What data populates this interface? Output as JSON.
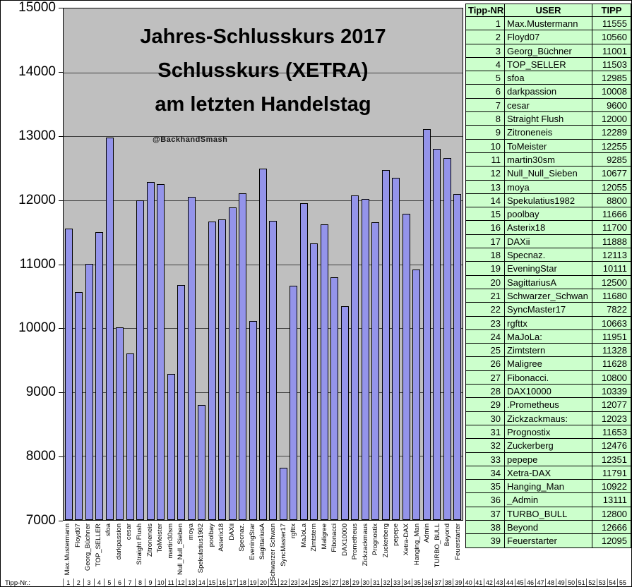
{
  "chart": {
    "title_lines": [
      "Jahres-Schlusskurs 2017",
      "Schlusskurs (XETRA)",
      "am letzten Handelstag"
    ],
    "watermark": "@BackhandSmash",
    "colors": {
      "bar_fill": "#9494ea",
      "bar_border": "#000000",
      "plot_background": "#bfbfbf",
      "table_background": "#ccffcc",
      "gridline": "#3f3f3f"
    },
    "y_axis": {
      "min": 7000,
      "max": 15000,
      "step": 1000,
      "ticks": [
        "15000",
        "14000",
        "13000",
        "12000",
        "11000",
        "10000",
        "9000",
        "8000",
        "7000"
      ]
    }
  },
  "number_row": {
    "label": "Tipp-Nr.:",
    "from": 1,
    "to": 55
  },
  "table": {
    "headers": [
      "Tipp-NR.:",
      "USER",
      "TIPP"
    ]
  },
  "chart_data": {
    "type": "bar",
    "title": "Jahres-Schlusskurs 2017 Schlusskurs (XETRA) am letzten Handelstag",
    "ylim": [
      7000,
      15000
    ],
    "y_step": 1000,
    "grid": true,
    "entries": [
      {
        "nr": 1,
        "user": "Max.Mustermann",
        "label": "Max.Mustermann",
        "tipp": 11555
      },
      {
        "nr": 2,
        "user": "Floyd07",
        "label": "Floyd07",
        "tipp": 10560
      },
      {
        "nr": 3,
        "user": "Georg_Büchner",
        "label": "Georg_Büchner",
        "tipp": 11001
      },
      {
        "nr": 4,
        "user": "TOP_SELLER",
        "label": "TOP_SELLER",
        "tipp": 11503
      },
      {
        "nr": 5,
        "user": "sfoa",
        "label": "sfoa",
        "tipp": 12985
      },
      {
        "nr": 6,
        "user": "darkpassion",
        "label": "darkpassion",
        "tipp": 10008
      },
      {
        "nr": 7,
        "user": "cesar",
        "label": "cesar",
        "tipp": 9600
      },
      {
        "nr": 8,
        "user": "Straight Flush",
        "label": "Straight Flush",
        "tipp": 12000
      },
      {
        "nr": 9,
        "user": "Zitroneneis",
        "label": "Zitroneneis",
        "tipp": 12289
      },
      {
        "nr": 10,
        "user": "ToMeister",
        "label": "ToMeister",
        "tipp": 12255
      },
      {
        "nr": 11,
        "user": "martin30sm",
        "label": "martin30sm",
        "tipp": 9285
      },
      {
        "nr": 12,
        "user": "Null_Null_Sieben",
        "label": "Null_Null_Sieben",
        "tipp": 10677
      },
      {
        "nr": 13,
        "user": "moya",
        "label": "moya",
        "tipp": 12055
      },
      {
        "nr": 14,
        "user": "Spekulatius1982",
        "label": "Spekulatius1982",
        "tipp": 8800
      },
      {
        "nr": 15,
        "user": "poolbay",
        "label": "poolbay",
        "tipp": 11666
      },
      {
        "nr": 16,
        "user": "Asterix18",
        "label": "Asterix18",
        "tipp": 11700
      },
      {
        "nr": 17,
        "user": "DAXii",
        "label": "DAXii",
        "tipp": 11888
      },
      {
        "nr": 18,
        "user": "Specnaz.",
        "label": "Specnaz.",
        "tipp": 12113
      },
      {
        "nr": 19,
        "user": "EveningStar",
        "label": "EveningStar",
        "tipp": 10111
      },
      {
        "nr": 20,
        "user": "SagittariusA",
        "label": "SagittariusA",
        "tipp": 12500
      },
      {
        "nr": 21,
        "user": "Schwarzer_Schwan",
        "label": "Schwarzer Schwan",
        "tipp": 11680
      },
      {
        "nr": 22,
        "user": "SyncMaster17",
        "label": "SyncMaster17",
        "tipp": 7822
      },
      {
        "nr": 23,
        "user": "rgfttx",
        "label": "rgfttx",
        "tipp": 10663
      },
      {
        "nr": 24,
        "user": "MaJoLa:",
        "label": "MaJoLa",
        "tipp": 11951
      },
      {
        "nr": 25,
        "user": "Zimtstern",
        "label": "Zimtstern",
        "tipp": 11328
      },
      {
        "nr": 26,
        "user": "Maligree",
        "label": "Maligree",
        "tipp": 11628
      },
      {
        "nr": 27,
        "user": "Fibonacci.",
        "label": "Fibonacci",
        "tipp": 10800
      },
      {
        "nr": 28,
        "user": "DAX10000",
        "label": "DAX10000",
        "tipp": 10339
      },
      {
        "nr": 29,
        "user": ".Prometheus",
        "label": "Prometheus",
        "tipp": 12077
      },
      {
        "nr": 30,
        "user": "Zickzackmaus:",
        "label": "Zickzackmaus",
        "tipp": 12023
      },
      {
        "nr": 31,
        "user": "Prognostix",
        "label": "Prognostix",
        "tipp": 11653
      },
      {
        "nr": 32,
        "user": "Zuckerberg",
        "label": "Zuckerberg",
        "tipp": 12476
      },
      {
        "nr": 33,
        "user": "pepepe",
        "label": "pepepe",
        "tipp": 12351
      },
      {
        "nr": 34,
        "user": "Xetra-DAX",
        "label": "Xetra-DAX",
        "tipp": 11791
      },
      {
        "nr": 35,
        "user": "Hanging_Man",
        "label": "Hanging_Man",
        "tipp": 10922
      },
      {
        "nr": 36,
        "user": "_Admin",
        "label": "Admin",
        "tipp": 13111
      },
      {
        "nr": 37,
        "user": "TURBO_BULL",
        "label": "TURBO_BULL",
        "tipp": 12800
      },
      {
        "nr": 38,
        "user": "Beyond",
        "label": "Beyond",
        "tipp": 12666
      },
      {
        "nr": 39,
        "user": "Feuerstarter",
        "label": "Feuerstarter",
        "tipp": 12095
      }
    ]
  }
}
